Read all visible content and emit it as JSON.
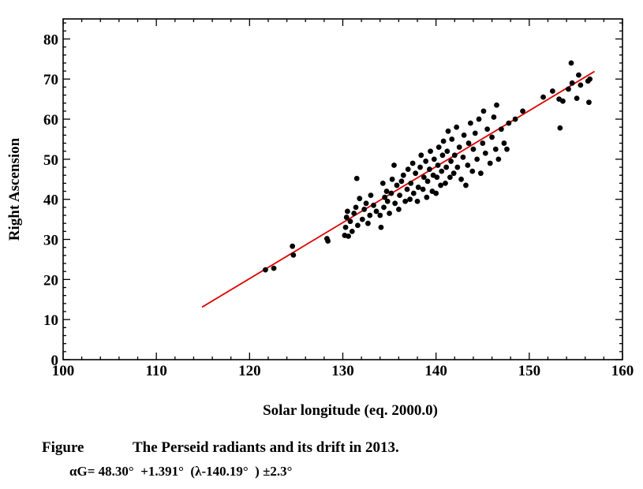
{
  "chart_data": {
    "type": "scatter",
    "title": "",
    "xlabel": "Solar longitude (eq. 2000.0)",
    "ylabel": "Right Ascension",
    "xlim": [
      100,
      160
    ],
    "ylim": [
      0,
      85
    ],
    "x_ticks": [
      100,
      110,
      120,
      130,
      140,
      150,
      160
    ],
    "y_ticks": [
      0,
      10,
      20,
      30,
      40,
      50,
      60,
      70,
      80
    ],
    "grid": false,
    "legend": "none",
    "marker_color": "#000000",
    "fit_line": {
      "x": [
        114.9,
        157.0
      ],
      "y": [
        13.1,
        71.9
      ],
      "color": "#e00000"
    },
    "points": [
      [
        121.7,
        22.4
      ],
      [
        122.6,
        22.8
      ],
      [
        124.6,
        28.3
      ],
      [
        124.7,
        26.1
      ],
      [
        128.3,
        30.2
      ],
      [
        128.4,
        29.6
      ],
      [
        130.2,
        31.0
      ],
      [
        130.3,
        33.0
      ],
      [
        130.4,
        35.5
      ],
      [
        130.5,
        37.0
      ],
      [
        130.6,
        30.8
      ],
      [
        130.8,
        34.5
      ],
      [
        131.0,
        32.0
      ],
      [
        131.2,
        36.5
      ],
      [
        131.4,
        38.0
      ],
      [
        131.5,
        45.2
      ],
      [
        131.6,
        33.5
      ],
      [
        131.8,
        40.2
      ],
      [
        132.1,
        35.0
      ],
      [
        132.3,
        37.5
      ],
      [
        132.5,
        39.0
      ],
      [
        132.7,
        34.0
      ],
      [
        132.9,
        36.0
      ],
      [
        133.0,
        41.0
      ],
      [
        133.3,
        38.5
      ],
      [
        133.6,
        37.0
      ],
      [
        134.0,
        36.0
      ],
      [
        134.1,
        33.0
      ],
      [
        134.3,
        44.0
      ],
      [
        134.4,
        38.0
      ],
      [
        134.5,
        40.5
      ],
      [
        134.7,
        42.0
      ],
      [
        134.8,
        39.5
      ],
      [
        135.0,
        36.5
      ],
      [
        135.2,
        41.5
      ],
      [
        135.3,
        45.0
      ],
      [
        135.5,
        48.5
      ],
      [
        135.6,
        39.0
      ],
      [
        135.8,
        43.5
      ],
      [
        136.0,
        37.5
      ],
      [
        136.1,
        41.0
      ],
      [
        136.3,
        44.5
      ],
      [
        136.5,
        46.0
      ],
      [
        136.7,
        39.5
      ],
      [
        136.9,
        42.5
      ],
      [
        137.0,
        47.5
      ],
      [
        137.2,
        40.0
      ],
      [
        137.3,
        44.0
      ],
      [
        137.5,
        49.0
      ],
      [
        137.6,
        41.5
      ],
      [
        137.8,
        46.5
      ],
      [
        138.0,
        39.5
      ],
      [
        138.1,
        43.0
      ],
      [
        138.3,
        48.0
      ],
      [
        138.4,
        51.0
      ],
      [
        138.6,
        42.5
      ],
      [
        138.7,
        45.5
      ],
      [
        138.9,
        49.5
      ],
      [
        139.0,
        40.5
      ],
      [
        139.1,
        44.5
      ],
      [
        139.3,
        47.5
      ],
      [
        139.4,
        52.0
      ],
      [
        139.6,
        42.0
      ],
      [
        139.7,
        46.0
      ],
      [
        139.8,
        50.0
      ],
      [
        140.0,
        41.5
      ],
      [
        140.1,
        45.5
      ],
      [
        140.2,
        48.5
      ],
      [
        140.3,
        53.0
      ],
      [
        140.5,
        43.5
      ],
      [
        140.6,
        47.0
      ],
      [
        140.7,
        51.0
      ],
      [
        140.8,
        54.5
      ],
      [
        141.0,
        44.0
      ],
      [
        141.1,
        48.0
      ],
      [
        141.2,
        52.0
      ],
      [
        141.3,
        57.0
      ],
      [
        141.5,
        45.5
      ],
      [
        141.6,
        49.5
      ],
      [
        141.7,
        55.0
      ],
      [
        141.9,
        46.5
      ],
      [
        142.0,
        51.0
      ],
      [
        142.2,
        58.0
      ],
      [
        142.3,
        48.0
      ],
      [
        142.5,
        53.0
      ],
      [
        142.7,
        45.0
      ],
      [
        142.9,
        50.5
      ],
      [
        143.0,
        56.0
      ],
      [
        143.2,
        43.5
      ],
      [
        143.4,
        48.5
      ],
      [
        143.5,
        54.0
      ],
      [
        143.7,
        59.0
      ],
      [
        143.9,
        47.0
      ],
      [
        144.0,
        52.5
      ],
      [
        144.2,
        56.5
      ],
      [
        144.4,
        50.0
      ],
      [
        144.6,
        60.0
      ],
      [
        144.8,
        46.5
      ],
      [
        145.0,
        54.0
      ],
      [
        145.1,
        62.0
      ],
      [
        145.3,
        51.5
      ],
      [
        145.5,
        57.5
      ],
      [
        145.8,
        49.0
      ],
      [
        146.0,
        55.5
      ],
      [
        146.2,
        60.5
      ],
      [
        146.4,
        52.5
      ],
      [
        146.5,
        63.5
      ],
      [
        146.7,
        50.0
      ],
      [
        147.0,
        57.5
      ],
      [
        147.3,
        54.0
      ],
      [
        147.6,
        52.5
      ],
      [
        147.8,
        59.0
      ],
      [
        148.5,
        60.0
      ],
      [
        149.3,
        62.0
      ],
      [
        151.5,
        65.5
      ],
      [
        152.5,
        67.0
      ],
      [
        153.2,
        65.0
      ],
      [
        153.3,
        57.8
      ],
      [
        153.6,
        64.5
      ],
      [
        154.2,
        67.5
      ],
      [
        154.5,
        74.0
      ],
      [
        154.6,
        69.0
      ],
      [
        155.1,
        65.2
      ],
      [
        155.3,
        71.0
      ],
      [
        155.5,
        68.5
      ],
      [
        156.3,
        69.5
      ],
      [
        156.4,
        64.2
      ],
      [
        156.5,
        70.0
      ]
    ]
  },
  "caption": {
    "figure_label": "Figure",
    "text": "The Perseid radiants and its drift in 2013.",
    "formula": "αG= 48.30°  +1.391°  (λ-140.19°  ) ±2.3°"
  }
}
